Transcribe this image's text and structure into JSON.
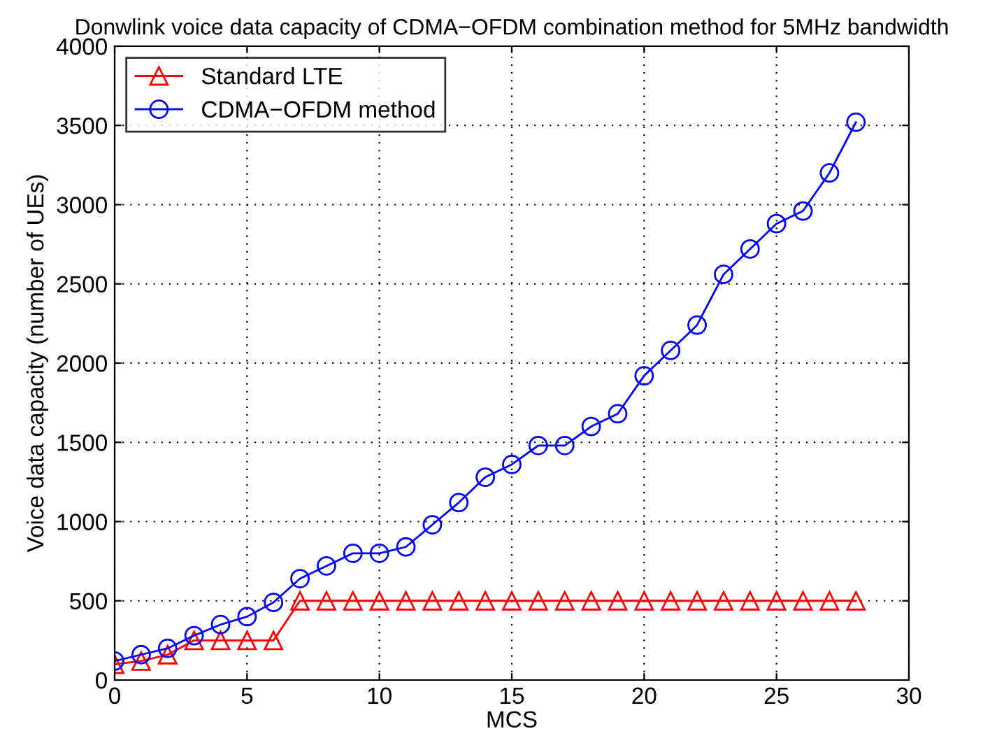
{
  "chart_data": {
    "type": "line",
    "title": "Donwlink voice data capacity of CDMA−OFDM combination method for 5MHz bandwidth",
    "xlabel": "MCS",
    "ylabel": "Voice data capacity (number of UEs)",
    "x": [
      0,
      1,
      2,
      3,
      4,
      5,
      6,
      7,
      8,
      9,
      10,
      11,
      12,
      13,
      14,
      15,
      16,
      17,
      18,
      19,
      20,
      21,
      22,
      23,
      24,
      25,
      26,
      27,
      28
    ],
    "series": [
      {
        "name": "Standard LTE",
        "color": "#ff0000",
        "marker": "triangle",
        "values": [
          100,
          120,
          160,
          250,
          250,
          250,
          250,
          500,
          500,
          500,
          500,
          500,
          500,
          500,
          500,
          500,
          500,
          500,
          500,
          500,
          500,
          500,
          500,
          500,
          500,
          500,
          500,
          500,
          500
        ]
      },
      {
        "name": "CDMA−OFDM method",
        "color": "#0000ff",
        "marker": "circle",
        "values": [
          120,
          160,
          200,
          280,
          350,
          400,
          490,
          640,
          720,
          800,
          800,
          840,
          980,
          1120,
          1280,
          1360,
          1480,
          1480,
          1600,
          1680,
          1920,
          2080,
          2240,
          2560,
          2720,
          2880,
          2960,
          3200,
          3520
        ]
      }
    ],
    "xlim": [
      0,
      30
    ],
    "xticks": [
      0,
      5,
      10,
      15,
      20,
      25,
      30
    ],
    "ylim": [
      0,
      4000
    ],
    "yticks": [
      0,
      500,
      1000,
      1500,
      2000,
      2500,
      3000,
      3500,
      4000
    ],
    "grid": true,
    "legend": "top left",
    "line_style": "solid"
  }
}
